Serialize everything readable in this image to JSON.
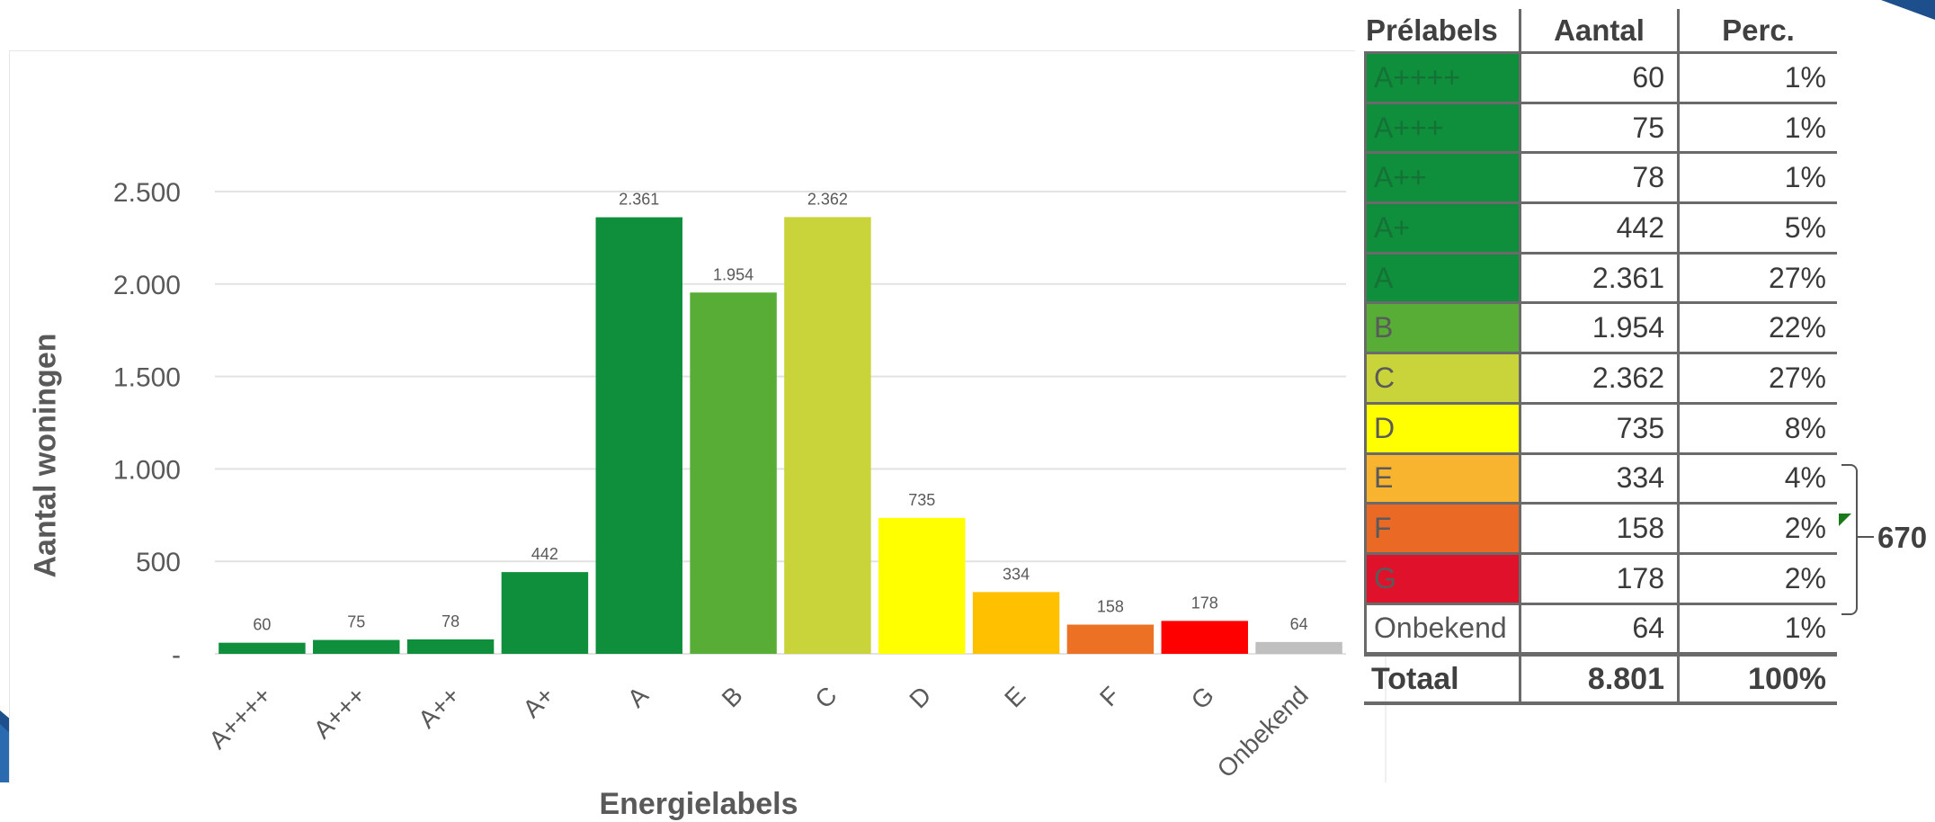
{
  "chart_data": {
    "type": "bar",
    "title": "",
    "xlabel": "Energielabels",
    "ylabel": "Aantal woningen",
    "ylim": [
      0,
      2500
    ],
    "yticks": [
      {
        "value": 0,
        "label": "-"
      },
      {
        "value": 500,
        "label": "500"
      },
      {
        "value": 1000,
        "label": "1.000"
      },
      {
        "value": 1500,
        "label": "1.500"
      },
      {
        "value": 2000,
        "label": "2.000"
      },
      {
        "value": 2500,
        "label": "2.500"
      }
    ],
    "grid": true,
    "categories": [
      "A++++",
      "A+++",
      "A++",
      "A+",
      "A",
      "B",
      "C",
      "D",
      "E",
      "F",
      "G",
      "Onbekend"
    ],
    "values": [
      60,
      75,
      78,
      442,
      2361,
      1954,
      2362,
      735,
      334,
      158,
      178,
      64
    ],
    "data_labels": [
      "60",
      "75",
      "78",
      "442",
      "2.361",
      "1.954",
      "2.362",
      "735",
      "334",
      "158",
      "178",
      "64"
    ],
    "colors": [
      "#0f8f3c",
      "#0f8f3c",
      "#0f8f3c",
      "#0f8f3c",
      "#0f8f3c",
      "#58ad36",
      "#c8d43a",
      "#ffff00",
      "#ffc000",
      "#ed7124",
      "#ff0000",
      "#bfbfbf"
    ]
  },
  "table": {
    "headers": [
      "Prélabels",
      "Aantal",
      "Perc."
    ],
    "rows": [
      {
        "label": "A++++",
        "count": "60",
        "pct": "1%",
        "bg": "#0f8f3c"
      },
      {
        "label": "A+++",
        "count": "75",
        "pct": "1%",
        "bg": "#0f8f3c"
      },
      {
        "label": "A++",
        "count": "78",
        "pct": "1%",
        "bg": "#0f8f3c"
      },
      {
        "label": "A+",
        "count": "442",
        "pct": "5%",
        "bg": "#0f8f3c"
      },
      {
        "label": "A",
        "count": "2.361",
        "pct": "27%",
        "bg": "#0f8f3c"
      },
      {
        "label": "B",
        "count": "1.954",
        "pct": "22%",
        "bg": "#58ad36"
      },
      {
        "label": "C",
        "count": "2.362",
        "pct": "27%",
        "bg": "#c8d43a"
      },
      {
        "label": "D",
        "count": "735",
        "pct": "8%",
        "bg": "#ffff00"
      },
      {
        "label": "E",
        "count": "334",
        "pct": "4%",
        "bg": "#f8b42f"
      },
      {
        "label": "F",
        "count": "158",
        "pct": "2%",
        "bg": "#ea6a25"
      },
      {
        "label": "G",
        "count": "178",
        "pct": "2%",
        "bg": "#e0122b"
      },
      {
        "label": "Onbekend",
        "count": "64",
        "pct": "1%",
        "bg": "#ffffff"
      }
    ],
    "total": {
      "label": "Totaal",
      "count": "8.801",
      "pct": "100%"
    }
  },
  "bracket_value": "670"
}
